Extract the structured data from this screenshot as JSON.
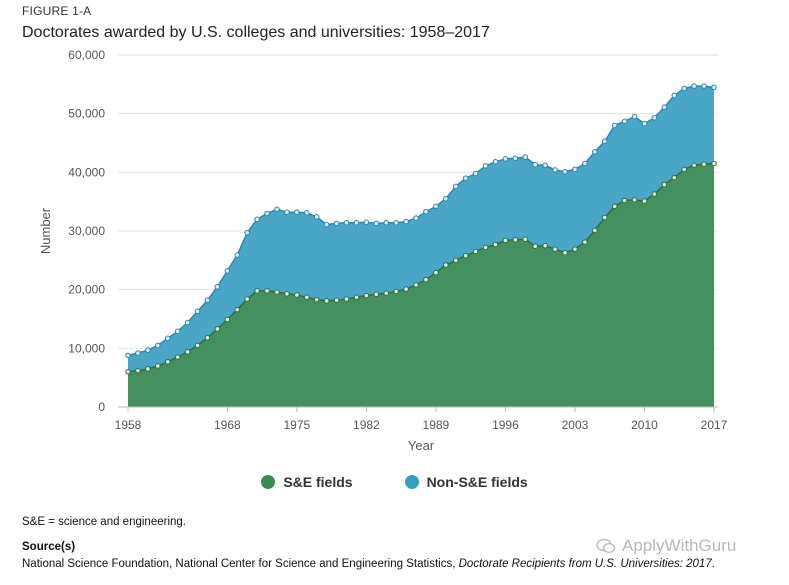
{
  "figure_label": "FIGURE 1-A",
  "chart_data": {
    "type": "area",
    "title": "Doctorates awarded by U.S. colleges and universities: 1958–2017",
    "xlabel": "Year",
    "ylabel": "Number",
    "ylim": [
      0,
      60000
    ],
    "yticks": [
      0,
      10000,
      20000,
      30000,
      40000,
      50000,
      60000
    ],
    "ytick_labels": [
      "0",
      "10,000",
      "20,000",
      "30,000",
      "40,000",
      "50,000",
      "60,000"
    ],
    "xticks": [
      1958,
      1968,
      1975,
      1982,
      1989,
      1996,
      2003,
      2010,
      2017
    ],
    "x": [
      1958,
      1959,
      1960,
      1961,
      1962,
      1963,
      1964,
      1965,
      1966,
      1967,
      1968,
      1969,
      1970,
      1971,
      1972,
      1973,
      1974,
      1975,
      1976,
      1977,
      1978,
      1979,
      1980,
      1981,
      1982,
      1983,
      1984,
      1985,
      1986,
      1987,
      1988,
      1989,
      1990,
      1991,
      1992,
      1993,
      1994,
      1995,
      1996,
      1997,
      1998,
      1999,
      2000,
      2001,
      2002,
      2003,
      2004,
      2005,
      2006,
      2007,
      2008,
      2009,
      2010,
      2011,
      2012,
      2013,
      2014,
      2015,
      2016,
      2017
    ],
    "series": [
      {
        "name": "S&E fields",
        "color": "#3a8a55",
        "values": [
          6000,
          6200,
          6500,
          7000,
          7700,
          8500,
          9400,
          10500,
          11800,
          13300,
          14900,
          16600,
          18400,
          19800,
          19800,
          19600,
          19300,
          19100,
          18700,
          18300,
          18100,
          18200,
          18400,
          18700,
          19000,
          19200,
          19400,
          19700,
          20100,
          20800,
          21700,
          22900,
          24200,
          25000,
          25800,
          26500,
          27200,
          27700,
          28400,
          28500,
          28600,
          27400,
          27500,
          26900,
          26300,
          26900,
          28100,
          30100,
          32300,
          34200,
          35200,
          35300,
          35100,
          36300,
          37900,
          39100,
          40500,
          41200,
          41400,
          41500
        ]
      },
      {
        "name": "Non-S&E fields",
        "color": "#3a9ec2",
        "values": [
          2800,
          3000,
          3200,
          3500,
          4000,
          4400,
          5000,
          5800,
          6400,
          7200,
          8300,
          9300,
          11300,
          12200,
          13200,
          14100,
          13900,
          14100,
          14400,
          14100,
          13000,
          13100,
          13000,
          12700,
          12500,
          12100,
          12000,
          11700,
          11500,
          11400,
          11600,
          11300,
          11300,
          12600,
          13200,
          13300,
          13900,
          14100,
          13900,
          13900,
          14000,
          13900,
          13700,
          13500,
          13800,
          13600,
          13400,
          13400,
          13000,
          13800,
          13500,
          14200,
          13200,
          13000,
          13200,
          14000,
          13800,
          13500,
          13300,
          13000
        ]
      }
    ],
    "legend": [
      "S&E fields",
      "Non-S&E fields"
    ]
  },
  "footnote": "S&E = science and engineering.",
  "source_heading": "Source(s)",
  "source_text": "National Science Foundation, National Center for Science and Engineering Statistics, ",
  "source_italic": "Doctorate Recipients from U.S. Universities: 2017",
  "source_end": ".",
  "watermark": "ApplyWithGuru"
}
